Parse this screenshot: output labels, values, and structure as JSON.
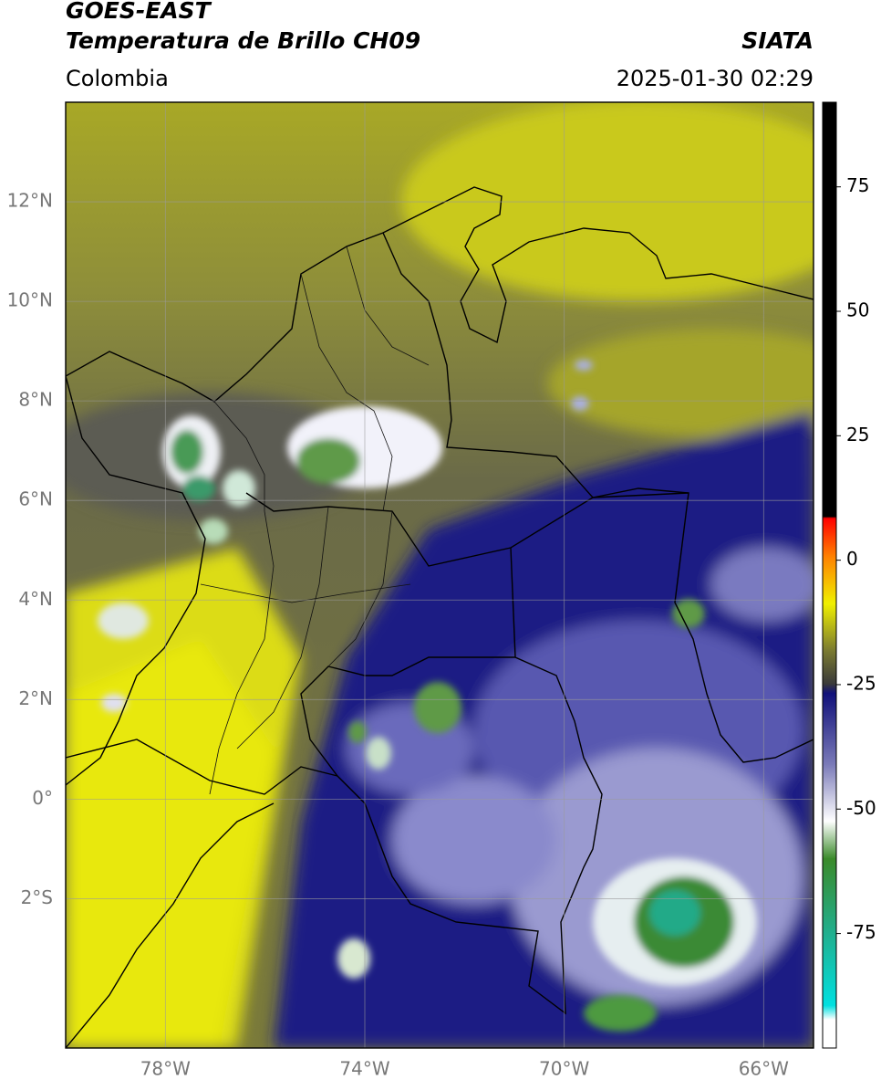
{
  "header": {
    "satellite": "GOES-EAST",
    "product": "Temperatura de Brillo CH09",
    "region": "Colombia",
    "source": "SIATA",
    "datetime": "2025-01-30 02:29"
  },
  "map": {
    "xlim": [
      -80,
      -65
    ],
    "ylim": [
      -5,
      14
    ],
    "xticks": [
      {
        "value": -78,
        "label": "78°W"
      },
      {
        "value": -74,
        "label": "74°W"
      },
      {
        "value": -70,
        "label": "70°W"
      },
      {
        "value": -66,
        "label": "66°W"
      }
    ],
    "yticks": [
      {
        "value": 12,
        "label": "12°N"
      },
      {
        "value": 10,
        "label": "10°N"
      },
      {
        "value": 8,
        "label": "8°N"
      },
      {
        "value": 6,
        "label": "6°N"
      },
      {
        "value": 4,
        "label": "4°N"
      },
      {
        "value": 2,
        "label": "2°N"
      },
      {
        "value": 0,
        "label": "0°"
      },
      {
        "value": -2,
        "label": "2°S"
      }
    ]
  },
  "colorbar": {
    "ylim": [
      -98,
      92
    ],
    "yticks": [
      75,
      50,
      25,
      0,
      -25,
      -50,
      -75
    ]
  }
}
